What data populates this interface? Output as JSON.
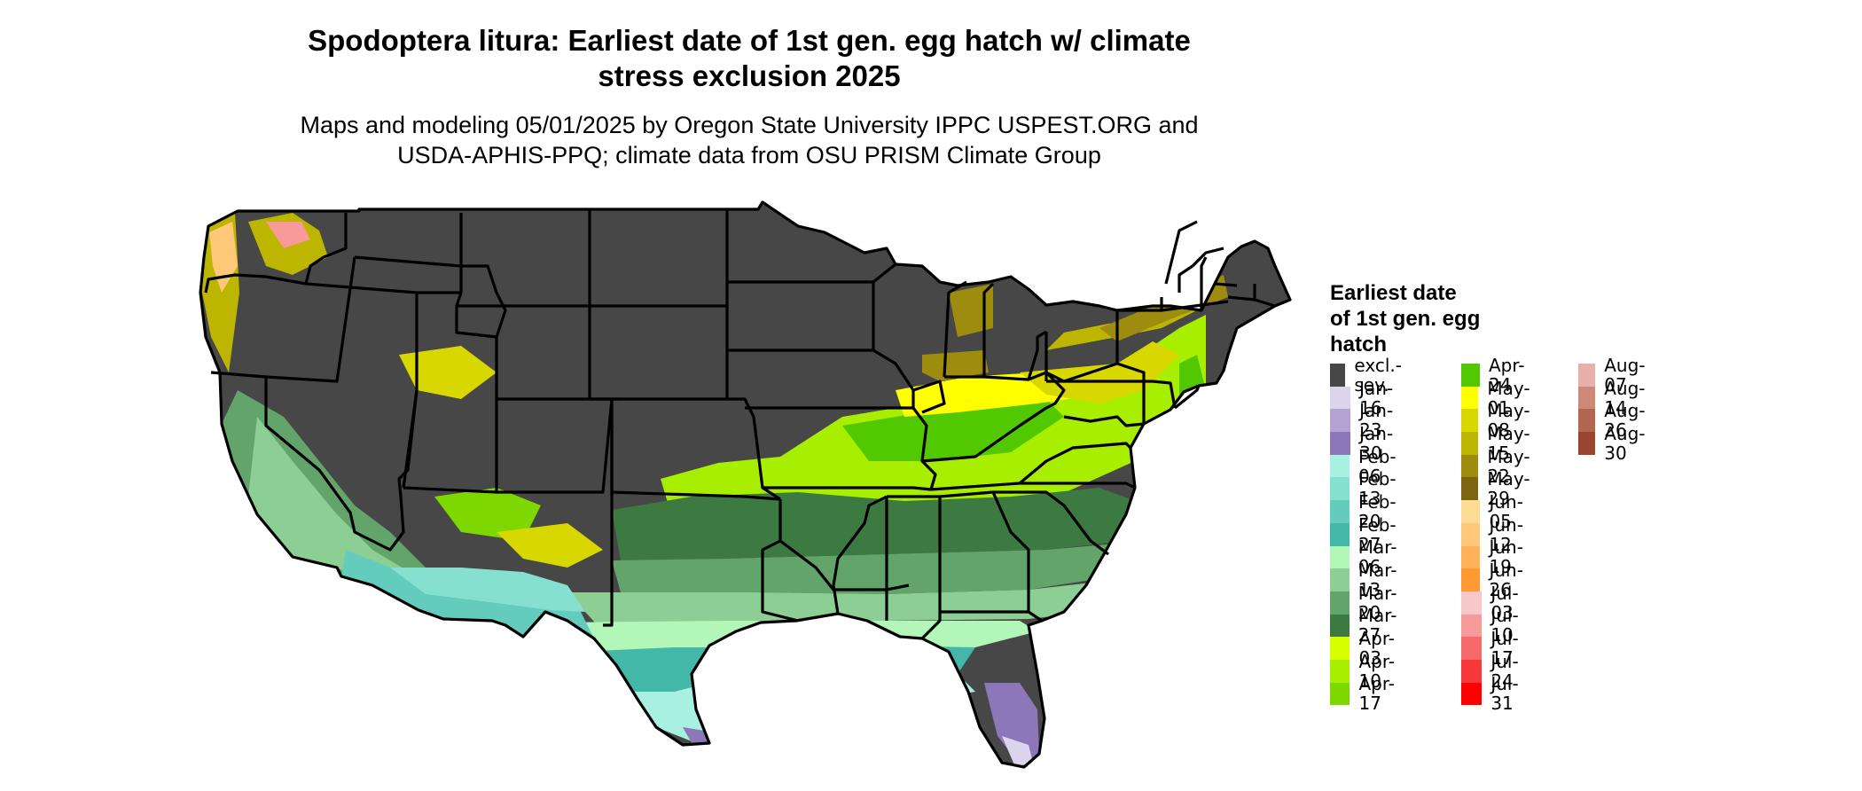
{
  "title": "Spodoptera litura: Earliest date of 1st gen. egg hatch w/ climate\nstress exclusion 2025",
  "subtitle": "Maps and modeling 05/01/2025 by Oregon State University IPPC USPEST.ORG and\nUSDA-APHIS-PPQ; climate data from OSU PRISM Climate Group",
  "legend": {
    "title": "Earliest date\nof 1st gen. egg\nhatch",
    "columns": [
      [
        {
          "label": "excl.-sev.",
          "color": "#474747"
        },
        {
          "label": "Jan-16",
          "color": "#dcd3ec"
        },
        {
          "label": "Jan-23",
          "color": "#b3a3d3"
        },
        {
          "label": "Jan-30",
          "color": "#8c78b8"
        },
        {
          "label": "Feb-06",
          "color": "#a8f0e0"
        },
        {
          "label": "Feb-13",
          "color": "#86e0cf"
        },
        {
          "label": "Feb-20",
          "color": "#63ccbc"
        },
        {
          "label": "Feb-27",
          "color": "#44b8a8"
        },
        {
          "label": "Mar-06",
          "color": "#b2f7b8"
        },
        {
          "label": "Mar-13",
          "color": "#8dce94"
        },
        {
          "label": "Mar-20",
          "color": "#62a46a"
        },
        {
          "label": "Mar-27",
          "color": "#3d7a42"
        },
        {
          "label": "Apr-03",
          "color": "#d6ff00"
        },
        {
          "label": "Apr-10",
          "color": "#a8ee00"
        },
        {
          "label": "Apr-17",
          "color": "#7ed800"
        }
      ],
      [
        {
          "label": "Apr-24",
          "color": "#52c800"
        },
        {
          "label": "May-01",
          "color": "#ffff00"
        },
        {
          "label": "May-08",
          "color": "#d8d800"
        },
        {
          "label": "May-15",
          "color": "#bdb600"
        },
        {
          "label": "May-22",
          "color": "#9e8c0e"
        },
        {
          "label": "May-29",
          "color": "#7d6410"
        },
        {
          "label": "Jun-05",
          "color": "#ffdc96"
        },
        {
          "label": "Jun-12",
          "color": "#ffc878"
        },
        {
          "label": "Jun-19",
          "color": "#ffb25a"
        },
        {
          "label": "Jun-26",
          "color": "#ff9a32"
        },
        {
          "label": "Jul-03",
          "color": "#f8c8c8"
        },
        {
          "label": "Jul-10",
          "color": "#f89a9a"
        },
        {
          "label": "Jul-17",
          "color": "#f66a6a"
        },
        {
          "label": "Jul-24",
          "color": "#f83838"
        },
        {
          "label": "Jul-31",
          "color": "#ff0000"
        }
      ],
      [
        {
          "label": "Aug-07",
          "color": "#e8b0aa"
        },
        {
          "label": "Aug-14",
          "color": "#cc8878"
        },
        {
          "label": "Aug-26",
          "color": "#b26650"
        },
        {
          "label": "Aug-30",
          "color": "#9a4530"
        }
      ]
    ]
  }
}
